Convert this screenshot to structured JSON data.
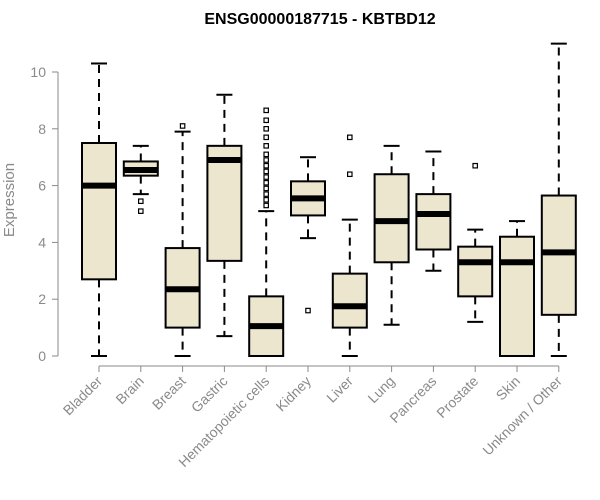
{
  "chart_data": {
    "type": "boxplot",
    "title": "ENSG00000187715 - KBTBD12",
    "xlabel": "",
    "ylabel": "Expression",
    "ylim": [
      0,
      11
    ],
    "yticks": [
      0,
      2,
      4,
      6,
      8,
      10
    ],
    "box_fill": "#ede6cf",
    "categories": [
      "Bladder",
      "Brain",
      "Breast",
      "Gastric",
      "Hematopoietic cells",
      "Kidney",
      "Liver",
      "Lung",
      "Pancreas",
      "Prostate",
      "Skin",
      "Unknown / Other"
    ],
    "boxes": [
      {
        "label": "Bladder",
        "min": 0,
        "q1": 2.7,
        "median": 6.0,
        "q3": 7.5,
        "max": 10.3,
        "outliers": []
      },
      {
        "label": "Brain",
        "min": 5.7,
        "q1": 6.35,
        "median": 6.55,
        "q3": 6.85,
        "max": 7.4,
        "outliers": [
          5.45,
          5.1
        ]
      },
      {
        "label": "Breast",
        "min": 0,
        "q1": 1.0,
        "median": 2.35,
        "q3": 3.8,
        "max": 7.9,
        "outliers": [
          8.1
        ]
      },
      {
        "label": "Gastric",
        "min": 0.7,
        "q1": 3.35,
        "median": 6.9,
        "q3": 7.4,
        "max": 9.2,
        "outliers": []
      },
      {
        "label": "Hematopoietic cells",
        "min": 0,
        "q1": 0,
        "median": 1.05,
        "q3": 2.1,
        "max": 5.1,
        "outliers": [
          5.3,
          5.5,
          5.7,
          5.9,
          6.1,
          6.3,
          6.5,
          6.7,
          6.9,
          7.1,
          7.4,
          7.7,
          8.0,
          8.3,
          8.65
        ]
      },
      {
        "label": "Kidney",
        "min": 4.15,
        "q1": 4.95,
        "median": 5.55,
        "q3": 6.15,
        "max": 7.0,
        "outliers": [
          1.6
        ]
      },
      {
        "label": "Liver",
        "min": 0,
        "q1": 1.0,
        "median": 1.75,
        "q3": 2.9,
        "max": 4.8,
        "outliers": [
          6.4,
          7.7
        ]
      },
      {
        "label": "Lung",
        "min": 1.1,
        "q1": 3.3,
        "median": 4.75,
        "q3": 6.4,
        "max": 7.4,
        "outliers": []
      },
      {
        "label": "Pancreas",
        "min": 3.0,
        "q1": 3.75,
        "median": 5.0,
        "q3": 5.7,
        "max": 7.2,
        "outliers": []
      },
      {
        "label": "Prostate",
        "min": 1.2,
        "q1": 2.1,
        "median": 3.3,
        "q3": 3.85,
        "max": 4.45,
        "outliers": [
          6.7
        ]
      },
      {
        "label": "Skin",
        "min": 0,
        "q1": 0,
        "median": 3.3,
        "q3": 4.2,
        "max": 4.75,
        "outliers": []
      },
      {
        "label": "Unknown / Other",
        "min": 0,
        "q1": 1.45,
        "median": 3.65,
        "q3": 5.65,
        "max": 11.0,
        "outliers": []
      }
    ]
  }
}
